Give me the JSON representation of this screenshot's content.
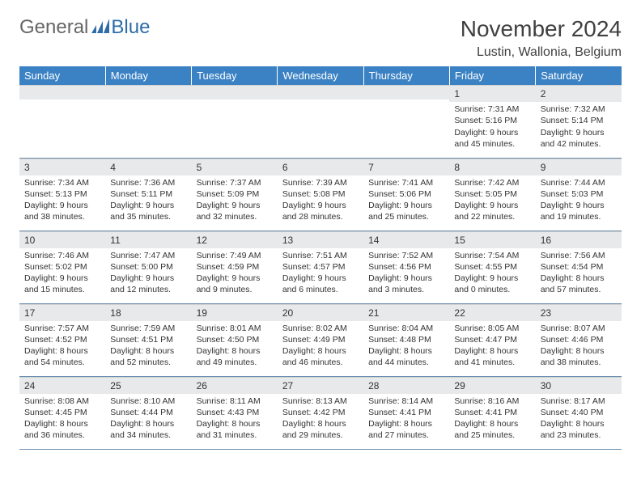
{
  "logo": {
    "text1": "General",
    "text2": "Blue"
  },
  "title": "November 2024",
  "location": "Lustin, Wallonia, Belgium",
  "colors": {
    "header_bg": "#3b82c4",
    "header_fg": "#ffffff",
    "daynum_bg": "#e7e9eb",
    "row_border": "#6b8fb0",
    "logo_blue": "#2f6da8",
    "text": "#333333"
  },
  "columns": [
    "Sunday",
    "Monday",
    "Tuesday",
    "Wednesday",
    "Thursday",
    "Friday",
    "Saturday"
  ],
  "weeks": [
    [
      {
        "day": "",
        "sunrise": "",
        "sunset": "",
        "daylight": ""
      },
      {
        "day": "",
        "sunrise": "",
        "sunset": "",
        "daylight": ""
      },
      {
        "day": "",
        "sunrise": "",
        "sunset": "",
        "daylight": ""
      },
      {
        "day": "",
        "sunrise": "",
        "sunset": "",
        "daylight": ""
      },
      {
        "day": "",
        "sunrise": "",
        "sunset": "",
        "daylight": ""
      },
      {
        "day": "1",
        "sunrise": "Sunrise: 7:31 AM",
        "sunset": "Sunset: 5:16 PM",
        "daylight": "Daylight: 9 hours and 45 minutes."
      },
      {
        "day": "2",
        "sunrise": "Sunrise: 7:32 AM",
        "sunset": "Sunset: 5:14 PM",
        "daylight": "Daylight: 9 hours and 42 minutes."
      }
    ],
    [
      {
        "day": "3",
        "sunrise": "Sunrise: 7:34 AM",
        "sunset": "Sunset: 5:13 PM",
        "daylight": "Daylight: 9 hours and 38 minutes."
      },
      {
        "day": "4",
        "sunrise": "Sunrise: 7:36 AM",
        "sunset": "Sunset: 5:11 PM",
        "daylight": "Daylight: 9 hours and 35 minutes."
      },
      {
        "day": "5",
        "sunrise": "Sunrise: 7:37 AM",
        "sunset": "Sunset: 5:09 PM",
        "daylight": "Daylight: 9 hours and 32 minutes."
      },
      {
        "day": "6",
        "sunrise": "Sunrise: 7:39 AM",
        "sunset": "Sunset: 5:08 PM",
        "daylight": "Daylight: 9 hours and 28 minutes."
      },
      {
        "day": "7",
        "sunrise": "Sunrise: 7:41 AM",
        "sunset": "Sunset: 5:06 PM",
        "daylight": "Daylight: 9 hours and 25 minutes."
      },
      {
        "day": "8",
        "sunrise": "Sunrise: 7:42 AM",
        "sunset": "Sunset: 5:05 PM",
        "daylight": "Daylight: 9 hours and 22 minutes."
      },
      {
        "day": "9",
        "sunrise": "Sunrise: 7:44 AM",
        "sunset": "Sunset: 5:03 PM",
        "daylight": "Daylight: 9 hours and 19 minutes."
      }
    ],
    [
      {
        "day": "10",
        "sunrise": "Sunrise: 7:46 AM",
        "sunset": "Sunset: 5:02 PM",
        "daylight": "Daylight: 9 hours and 15 minutes."
      },
      {
        "day": "11",
        "sunrise": "Sunrise: 7:47 AM",
        "sunset": "Sunset: 5:00 PM",
        "daylight": "Daylight: 9 hours and 12 minutes."
      },
      {
        "day": "12",
        "sunrise": "Sunrise: 7:49 AM",
        "sunset": "Sunset: 4:59 PM",
        "daylight": "Daylight: 9 hours and 9 minutes."
      },
      {
        "day": "13",
        "sunrise": "Sunrise: 7:51 AM",
        "sunset": "Sunset: 4:57 PM",
        "daylight": "Daylight: 9 hours and 6 minutes."
      },
      {
        "day": "14",
        "sunrise": "Sunrise: 7:52 AM",
        "sunset": "Sunset: 4:56 PM",
        "daylight": "Daylight: 9 hours and 3 minutes."
      },
      {
        "day": "15",
        "sunrise": "Sunrise: 7:54 AM",
        "sunset": "Sunset: 4:55 PM",
        "daylight": "Daylight: 9 hours and 0 minutes."
      },
      {
        "day": "16",
        "sunrise": "Sunrise: 7:56 AM",
        "sunset": "Sunset: 4:54 PM",
        "daylight": "Daylight: 8 hours and 57 minutes."
      }
    ],
    [
      {
        "day": "17",
        "sunrise": "Sunrise: 7:57 AM",
        "sunset": "Sunset: 4:52 PM",
        "daylight": "Daylight: 8 hours and 54 minutes."
      },
      {
        "day": "18",
        "sunrise": "Sunrise: 7:59 AM",
        "sunset": "Sunset: 4:51 PM",
        "daylight": "Daylight: 8 hours and 52 minutes."
      },
      {
        "day": "19",
        "sunrise": "Sunrise: 8:01 AM",
        "sunset": "Sunset: 4:50 PM",
        "daylight": "Daylight: 8 hours and 49 minutes."
      },
      {
        "day": "20",
        "sunrise": "Sunrise: 8:02 AM",
        "sunset": "Sunset: 4:49 PM",
        "daylight": "Daylight: 8 hours and 46 minutes."
      },
      {
        "day": "21",
        "sunrise": "Sunrise: 8:04 AM",
        "sunset": "Sunset: 4:48 PM",
        "daylight": "Daylight: 8 hours and 44 minutes."
      },
      {
        "day": "22",
        "sunrise": "Sunrise: 8:05 AM",
        "sunset": "Sunset: 4:47 PM",
        "daylight": "Daylight: 8 hours and 41 minutes."
      },
      {
        "day": "23",
        "sunrise": "Sunrise: 8:07 AM",
        "sunset": "Sunset: 4:46 PM",
        "daylight": "Daylight: 8 hours and 38 minutes."
      }
    ],
    [
      {
        "day": "24",
        "sunrise": "Sunrise: 8:08 AM",
        "sunset": "Sunset: 4:45 PM",
        "daylight": "Daylight: 8 hours and 36 minutes."
      },
      {
        "day": "25",
        "sunrise": "Sunrise: 8:10 AM",
        "sunset": "Sunset: 4:44 PM",
        "daylight": "Daylight: 8 hours and 34 minutes."
      },
      {
        "day": "26",
        "sunrise": "Sunrise: 8:11 AM",
        "sunset": "Sunset: 4:43 PM",
        "daylight": "Daylight: 8 hours and 31 minutes."
      },
      {
        "day": "27",
        "sunrise": "Sunrise: 8:13 AM",
        "sunset": "Sunset: 4:42 PM",
        "daylight": "Daylight: 8 hours and 29 minutes."
      },
      {
        "day": "28",
        "sunrise": "Sunrise: 8:14 AM",
        "sunset": "Sunset: 4:41 PM",
        "daylight": "Daylight: 8 hours and 27 minutes."
      },
      {
        "day": "29",
        "sunrise": "Sunrise: 8:16 AM",
        "sunset": "Sunset: 4:41 PM",
        "daylight": "Daylight: 8 hours and 25 minutes."
      },
      {
        "day": "30",
        "sunrise": "Sunrise: 8:17 AM",
        "sunset": "Sunset: 4:40 PM",
        "daylight": "Daylight: 8 hours and 23 minutes."
      }
    ]
  ]
}
